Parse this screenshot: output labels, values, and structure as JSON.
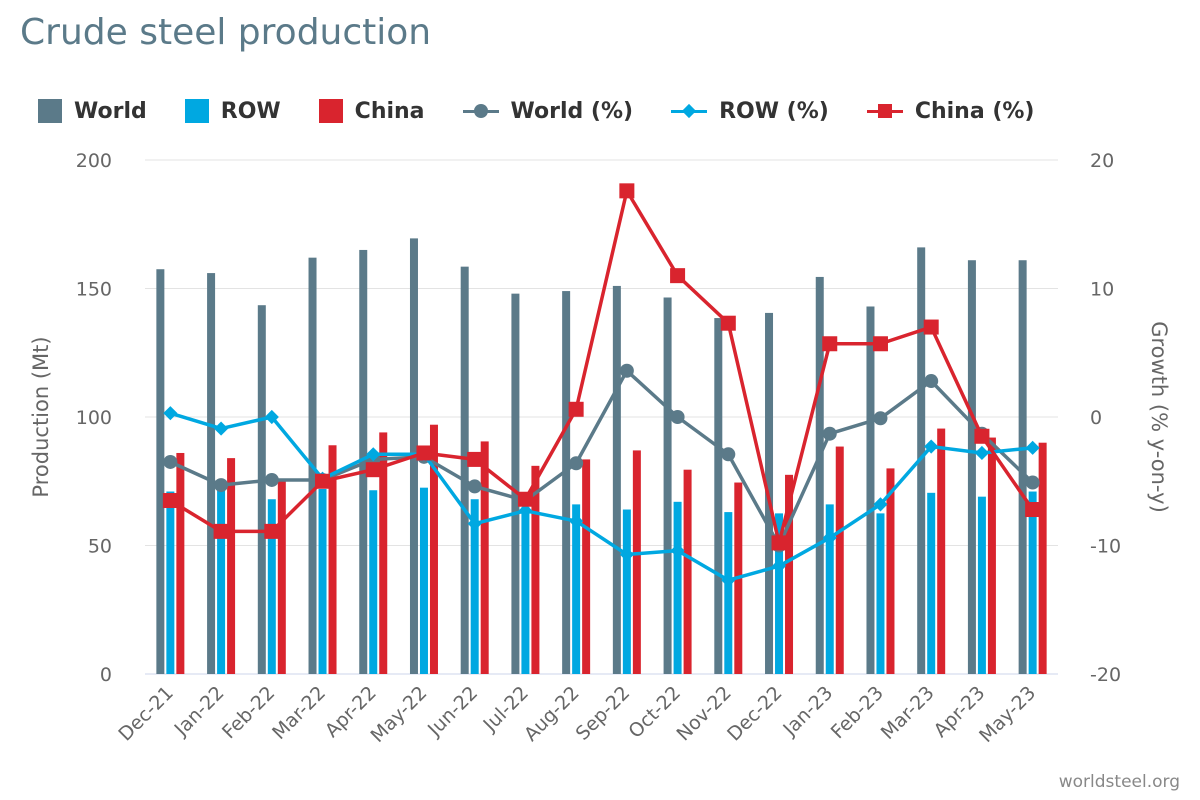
{
  "title": "Crude steel production",
  "credit": "worldsteel.org",
  "colors": {
    "world": "#5b7a89",
    "row": "#00a8e1",
    "china": "#d9242e",
    "grid": "#e3e3e3"
  },
  "legend": [
    {
      "label": "World",
      "kind": "box",
      "color": "#5b7a89"
    },
    {
      "label": "ROW",
      "kind": "box",
      "color": "#00a8e1"
    },
    {
      "label": "China",
      "kind": "box",
      "color": "#d9242e"
    },
    {
      "label": "World (%)",
      "kind": "line",
      "marker": "circle",
      "color": "#5b7a89"
    },
    {
      "label": "ROW (%)",
      "kind": "line",
      "marker": "diamond",
      "color": "#00a8e1"
    },
    {
      "label": "China (%)",
      "kind": "line",
      "marker": "square",
      "color": "#d9242e"
    }
  ],
  "chart_data": {
    "type": "bar",
    "categories": [
      "Dec-21",
      "Jan-22",
      "Feb-22",
      "Mar-22",
      "Apr-22",
      "May-22",
      "Jun-22",
      "Jul-22",
      "Aug-22",
      "Sep-22",
      "Oct-22",
      "Nov-22",
      "Dec-22",
      "Jan-23",
      "Feb-23",
      "Mar-23",
      "Apr-23",
      "May-23"
    ],
    "ylabel": "Production (Mt)",
    "ylim": [
      0,
      200
    ],
    "yticks": [
      0,
      50,
      100,
      150,
      200
    ],
    "y2label": "Growth (% y-on-y)",
    "y2lim": [
      -20,
      20
    ],
    "y2ticks": [
      -20,
      -10,
      0,
      10,
      20
    ],
    "grid": true,
    "legend_position": "top",
    "series": [
      {
        "name": "World",
        "type": "bar",
        "axis": "left",
        "values": [
          157.5,
          156,
          143.5,
          162,
          165,
          169.5,
          158.5,
          148,
          149,
          151,
          146.5,
          138.5,
          140.5,
          154.5,
          143,
          166,
          161,
          161
        ]
      },
      {
        "name": "ROW",
        "type": "bar",
        "axis": "left",
        "values": [
          71,
          72,
          68,
          72,
          71.5,
          72.5,
          68,
          65,
          66,
          64,
          67,
          63,
          62.5,
          66,
          62.5,
          70.5,
          69,
          71
        ]
      },
      {
        "name": "China",
        "type": "bar",
        "axis": "left",
        "values": [
          86,
          84,
          75.5,
          89,
          94,
          97,
          90.5,
          81,
          83.5,
          87,
          79.5,
          74.5,
          77.5,
          88.5,
          80,
          95.5,
          92,
          90
        ]
      },
      {
        "name": "World (%)",
        "type": "line",
        "axis": "right",
        "values": [
          -3.5,
          -5.3,
          -4.9,
          -4.9,
          -3.3,
          -3.1,
          -5.4,
          -6.5,
          -3.6,
          3.6,
          0.0,
          -2.9,
          -10.0,
          -1.3,
          -0.1,
          2.8,
          -1.3,
          -5.1
        ]
      },
      {
        "name": "ROW (%)",
        "type": "line",
        "axis": "right",
        "values": [
          0.3,
          -0.9,
          0.0,
          -4.8,
          -2.9,
          -2.9,
          -8.3,
          -7.3,
          -8.1,
          -10.7,
          -10.4,
          -12.7,
          -11.6,
          -9.4,
          -6.8,
          -2.3,
          -2.8,
          -2.4
        ]
      },
      {
        "name": "China (%)",
        "type": "line",
        "axis": "right",
        "values": [
          -6.5,
          -8.9,
          -8.9,
          -5.0,
          -4.1,
          -2.8,
          -3.3,
          -6.4,
          0.6,
          17.6,
          11.0,
          7.3,
          -9.8,
          5.7,
          5.7,
          7.0,
          -1.5,
          -7.2
        ]
      }
    ]
  }
}
